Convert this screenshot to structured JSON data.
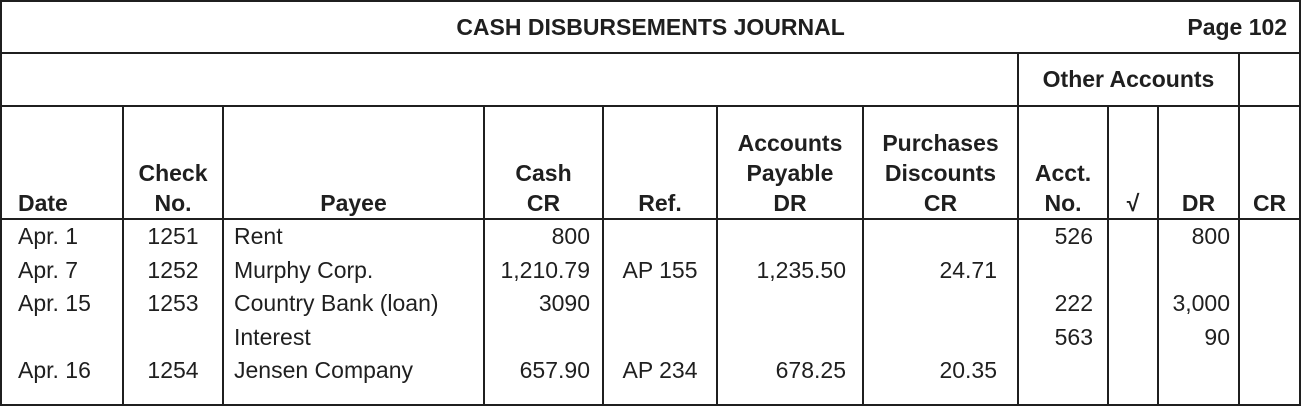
{
  "title": "CASH DISBURSEMENTS JOURNAL",
  "page_label": "Page 102",
  "group_header": "Other Accounts",
  "columns": {
    "date": "Date",
    "check_no": "Check\nNo.",
    "payee": "Payee",
    "cash_cr": "Cash\nCR",
    "ref": "Ref.",
    "ap_dr": "Accounts\nPayable\nDR",
    "pd_cr": "Purchases\nDiscounts\nCR",
    "acct_no": "Acct.\nNo.",
    "check_mark": "√",
    "dr": "DR",
    "cr": "CR"
  },
  "rows": [
    {
      "date": "Apr. 1",
      "check_no": "1251",
      "payee": "Rent",
      "cash_cr": "800",
      "ref": "",
      "ap_dr": "",
      "pd_cr": "",
      "acct_no": "526",
      "check_mark": "",
      "dr": "800",
      "cr": ""
    },
    {
      "date": "Apr. 7",
      "check_no": "1252",
      "payee": "Murphy Corp.",
      "cash_cr": "1,210.79",
      "ref": "AP 155",
      "ap_dr": "1,235.50",
      "pd_cr": "24.71",
      "acct_no": "",
      "check_mark": "",
      "dr": "",
      "cr": ""
    },
    {
      "date": "Apr. 15",
      "check_no": "1253",
      "payee": "Country Bank (loan)",
      "cash_cr": "3090",
      "ref": "",
      "ap_dr": "",
      "pd_cr": "",
      "acct_no": "222",
      "check_mark": "",
      "dr": "3,000",
      "cr": ""
    },
    {
      "date": "",
      "check_no": "",
      "payee": "Interest",
      "cash_cr": "",
      "ref": "",
      "ap_dr": "",
      "pd_cr": "",
      "acct_no": "563",
      "check_mark": "",
      "dr": "90",
      "cr": ""
    },
    {
      "date": "Apr. 16",
      "check_no": "1254",
      "payee": "Jensen Company",
      "cash_cr": "657.90",
      "ref": "AP 234",
      "ap_dr": "678.25",
      "pd_cr": "20.35",
      "acct_no": "",
      "check_mark": "",
      "dr": "",
      "cr": ""
    }
  ]
}
